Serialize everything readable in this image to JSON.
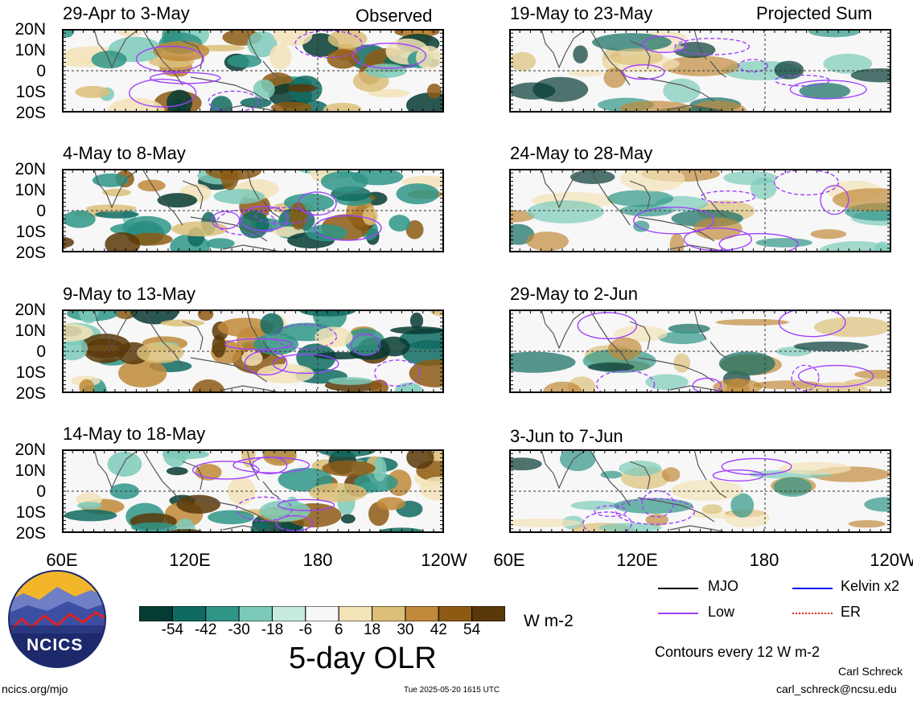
{
  "header": {
    "observed_label": "Observed",
    "projected_label": "Projected Sum"
  },
  "left_panels": [
    {
      "title": "29-Apr to 3-May"
    },
    {
      "title": "4-May to 8-May"
    },
    {
      "title": "9-May to 13-May"
    },
    {
      "title": "14-May to 18-May"
    }
  ],
  "right_panels": [
    {
      "title": "19-May to 23-May"
    },
    {
      "title": "24-May to 28-May"
    },
    {
      "title": "29-May to 2-Jun"
    },
    {
      "title": "3-Jun to 7-Jun"
    }
  ],
  "chart_data": {
    "type": "heatmap",
    "title": "5-day OLR",
    "units": "W m-2",
    "y_tick_labels": [
      "20N",
      "10N",
      "0",
      "10S",
      "20S"
    ],
    "x_tick_labels": [
      "60E",
      "120E",
      "180",
      "120W"
    ],
    "xlim": [
      "60E",
      "120W"
    ],
    "ylim": [
      "20S",
      "20N"
    ],
    "colorbar_ticks": [
      "-54",
      "-42",
      "-30",
      "-18",
      "-6",
      "6",
      "18",
      "30",
      "42",
      "54"
    ],
    "colorbar_colors": [
      "#063b33",
      "#0f6b61",
      "#2f9587",
      "#7ccab9",
      "#c6eadf",
      "#f7f7f7",
      "#f3e3b8",
      "#dcc07a",
      "#c08a3a",
      "#8d5a14",
      "#5b3808"
    ],
    "contour_note": "Contours every 12 W m-2",
    "legend": [
      {
        "label": "MJO",
        "color": "#000000"
      },
      {
        "label": "Kelvin x2",
        "color": "#0000ff"
      },
      {
        "label": "Low",
        "color": "#a040ff"
      },
      {
        "label": "ER",
        "color": "#e02020"
      }
    ]
  },
  "footer": {
    "site": "ncics.org/mjo",
    "timestamp": "Tue 2025-05-20 1615 UTC",
    "author": "Carl Schreck",
    "email": "carl_schreck@ncsu.edu",
    "logo_text": "NCICS"
  }
}
